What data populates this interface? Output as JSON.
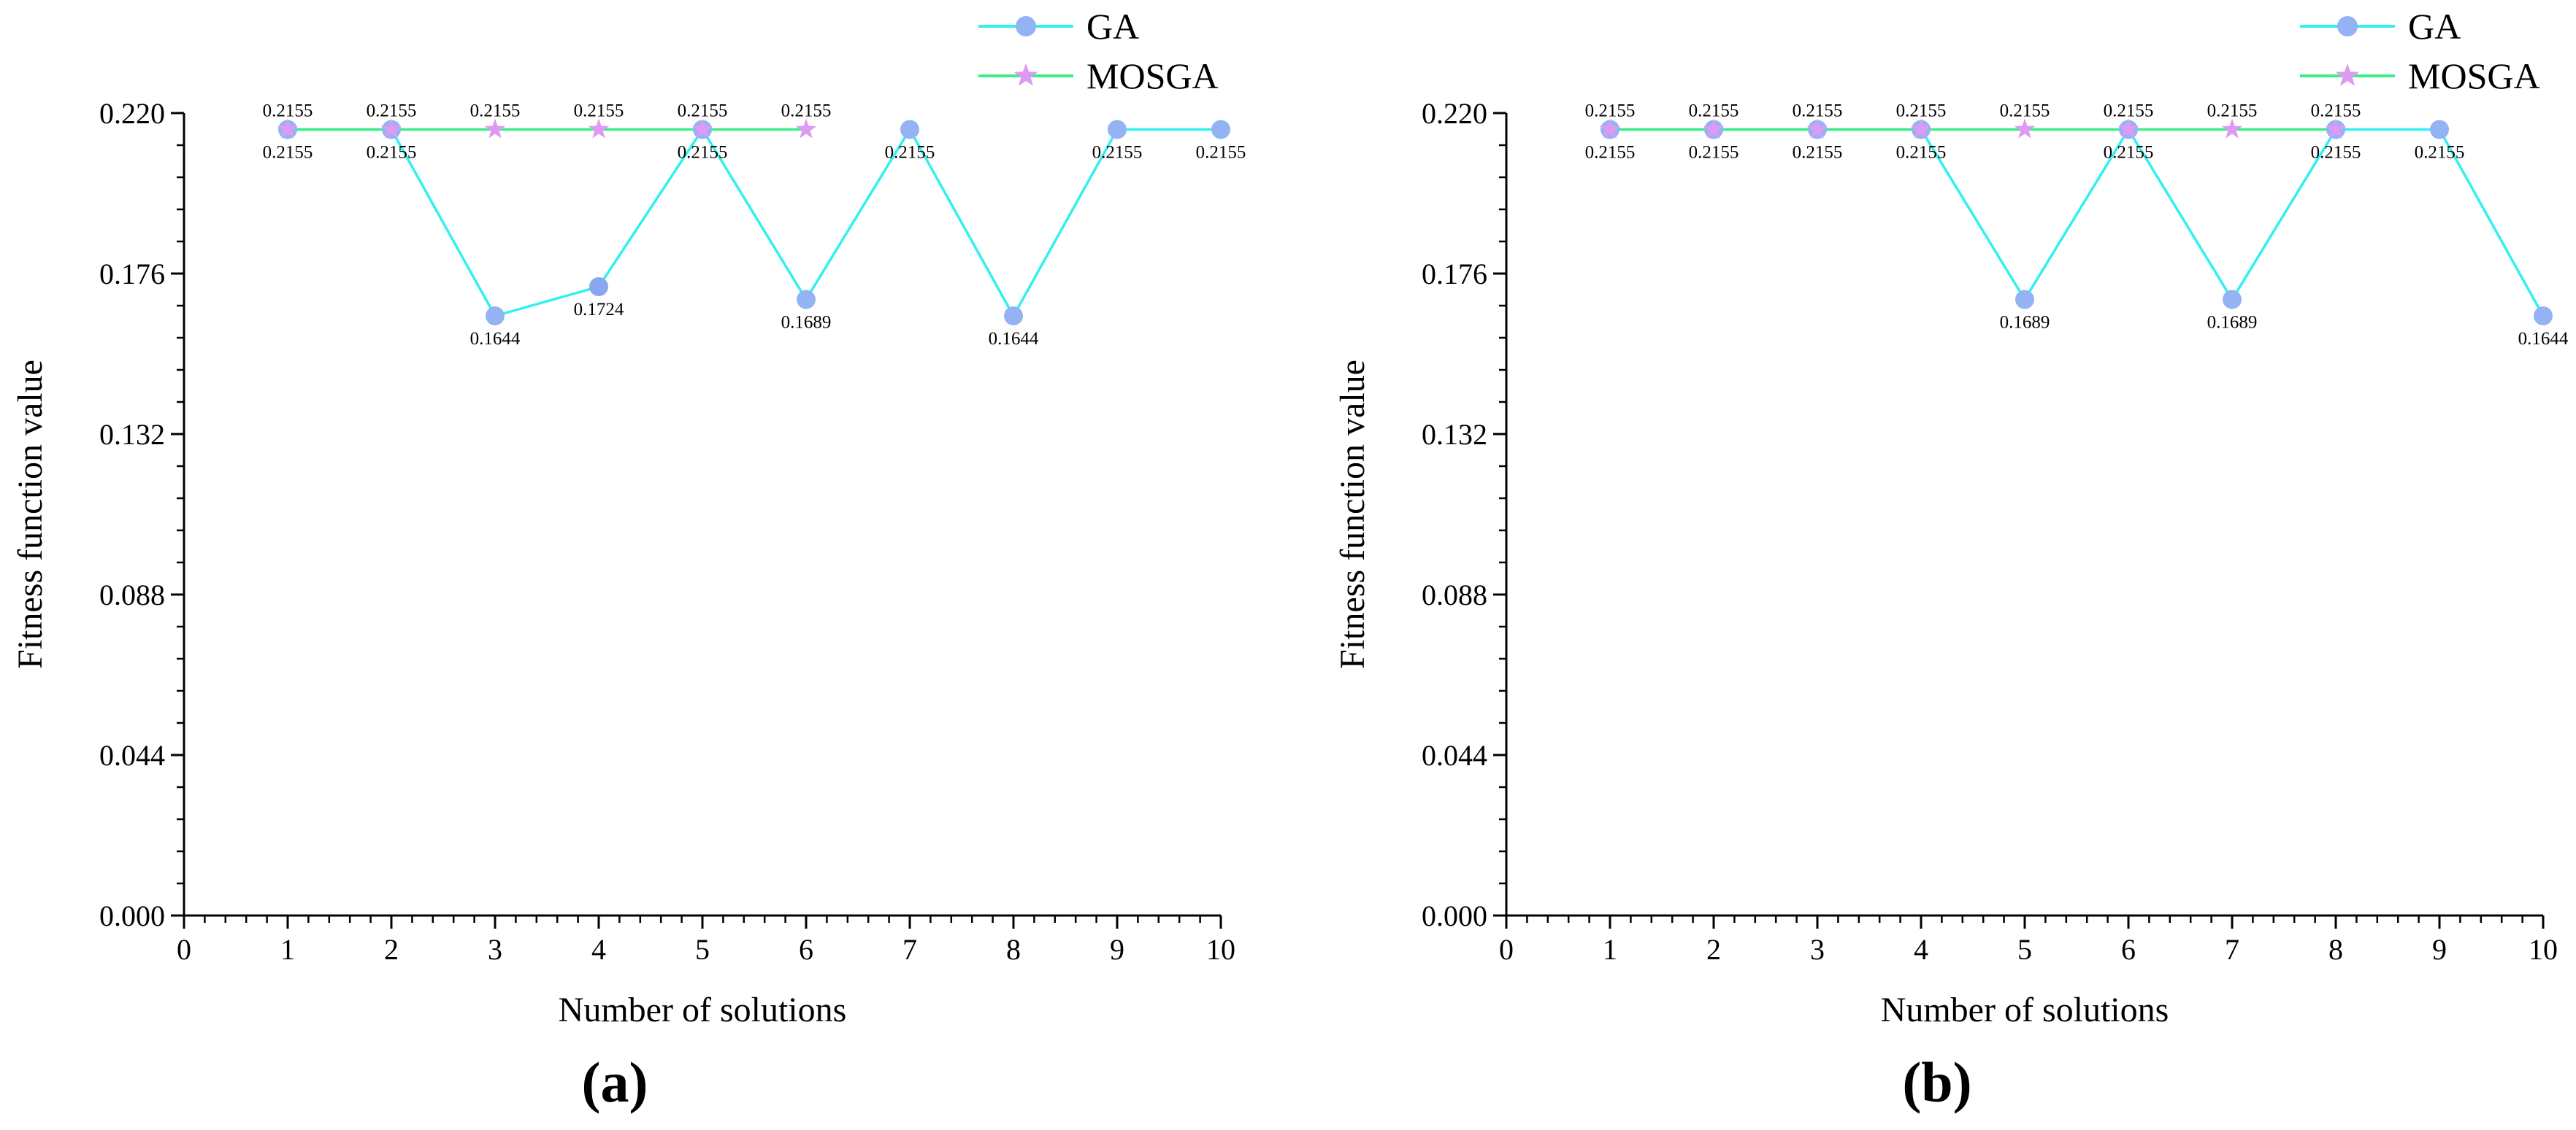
{
  "colors": {
    "ga_line": "#33f0f0",
    "ga_marker": "#93b3f5",
    "ga_marker_dark": "#8aa6ee",
    "mosga_line": "#3ded88",
    "mosga_marker": "#dd9af2",
    "axis": "#000000"
  },
  "chart_data": [
    {
      "type": "line",
      "panel_label": "(a)",
      "xlabel": "Number of solutions",
      "ylabel": "Fitness function value",
      "xlim": [
        0,
        10
      ],
      "ylim": [
        0,
        0.22
      ],
      "xticks": [
        0,
        1,
        2,
        3,
        4,
        5,
        6,
        7,
        8,
        9,
        10
      ],
      "yticks": [
        "0.000",
        "0.044",
        "0.088",
        "0.132",
        "0.176",
        "0.220"
      ],
      "legend": {
        "placement": "top-right",
        "entries": [
          "GA",
          "MOSGA"
        ]
      },
      "series": [
        {
          "name": "GA",
          "x": [
            1,
            2,
            3,
            4,
            5,
            6,
            7,
            8,
            9,
            10
          ],
          "values": [
            0.2155,
            0.2155,
            0.1644,
            0.1724,
            0.2155,
            0.1689,
            0.2155,
            0.1644,
            0.2155,
            0.2155
          ],
          "labels": [
            "0.2155",
            "0.2155",
            "0.1644",
            "0.1724",
            "0.2155",
            "0.1689",
            "0.2155",
            "0.1644",
            "0.2155",
            "0.2155"
          ]
        },
        {
          "name": "MOSGA",
          "x": [
            1,
            2,
            3,
            4,
            5,
            6
          ],
          "values": [
            0.2155,
            0.2155,
            0.2155,
            0.2155,
            0.2155,
            0.2155
          ],
          "labels": [
            "0.2155",
            "0.2155",
            "0.2155",
            "0.2155",
            "0.2155",
            "0.2155"
          ]
        }
      ]
    },
    {
      "type": "line",
      "panel_label": "(b)",
      "xlabel": "Number of solutions",
      "ylabel": "Fitness function value",
      "xlim": [
        0,
        10
      ],
      "ylim": [
        0,
        0.22
      ],
      "xticks": [
        0,
        1,
        2,
        3,
        4,
        5,
        6,
        7,
        8,
        9,
        10
      ],
      "yticks": [
        "0.000",
        "0.044",
        "0.088",
        "0.132",
        "0.176",
        "0.220"
      ],
      "legend": {
        "placement": "top-right",
        "entries": [
          "GA",
          "MOSGA"
        ]
      },
      "series": [
        {
          "name": "GA",
          "x": [
            1,
            2,
            3,
            4,
            5,
            6,
            7,
            8,
            9,
            10
          ],
          "values": [
            0.2155,
            0.2155,
            0.2155,
            0.2155,
            0.1689,
            0.2155,
            0.1689,
            0.2155,
            0.2155,
            0.1644
          ],
          "labels": [
            "0.2155",
            "0.2155",
            "0.2155",
            "0.2155",
            "0.1689",
            "0.2155",
            "0.1689",
            "0.2155",
            "0.2155",
            "0.1644"
          ]
        },
        {
          "name": "MOSGA",
          "x": [
            1,
            2,
            3,
            4,
            5,
            6,
            7,
            8
          ],
          "values": [
            0.2155,
            0.2155,
            0.2155,
            0.2155,
            0.2155,
            0.2155,
            0.2155,
            0.2155
          ],
          "labels": [
            "0.2155",
            "0.2155",
            "0.2155",
            "0.2155",
            "0.2155",
            "0.2155",
            "0.2155",
            "0.2155"
          ]
        }
      ]
    }
  ]
}
